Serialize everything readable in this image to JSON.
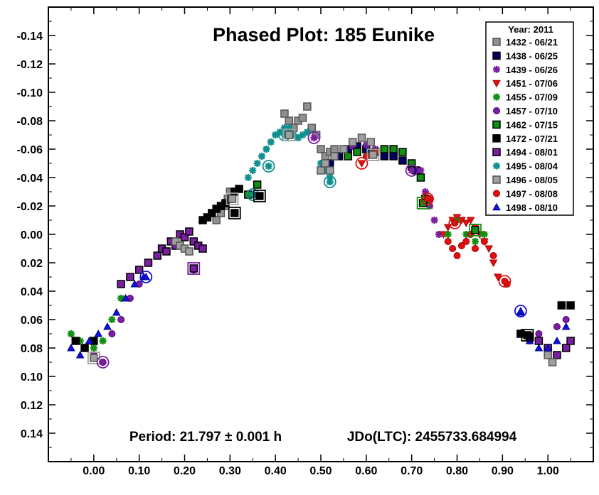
{
  "chart_data": {
    "type": "scatter",
    "title": "Phased Plot: 185 Eunike",
    "xlabel": "",
    "ylabel": "",
    "xlim": [
      -0.1,
      1.1
    ],
    "ylim": [
      0.16,
      -0.16
    ],
    "y_inverted": true,
    "x_ticks": [
      "0.00",
      "0.10",
      "0.20",
      "0.30",
      "0.40",
      "0.50",
      "0.60",
      "0.70",
      "0.80",
      "0.90",
      "1.00"
    ],
    "x_tick_values": [
      0.0,
      0.1,
      0.2,
      0.3,
      0.4,
      0.5,
      0.6,
      0.7,
      0.8,
      0.9,
      1.0
    ],
    "y_ticks": [
      "-0.14",
      "-0.12",
      "-0.10",
      "-0.08",
      "-0.06",
      "-0.04",
      "-0.02",
      "0.00",
      "0.02",
      "0.04",
      "0.06",
      "0.08",
      "0.10",
      "0.12",
      "0.14"
    ],
    "y_tick_values": [
      -0.14,
      -0.12,
      -0.1,
      -0.08,
      -0.06,
      -0.04,
      -0.02,
      0.0,
      0.02,
      0.04,
      0.06,
      0.08,
      0.1,
      0.12,
      0.14
    ],
    "grid": false,
    "legend_position": "top-right",
    "legend_title": "Year: 2011",
    "annotations": {
      "period": "Period: 21.797 ± 0.001 h",
      "epoch": "JDo(LTC): 2455733.684994"
    },
    "series": [
      {
        "name": "1432 - 06/21",
        "marker": "square",
        "fill": "#909090",
        "stroke": "#555555",
        "points": [
          [
            0.27,
            -0.01
          ],
          [
            0.28,
            -0.015
          ],
          [
            0.29,
            -0.02
          ],
          [
            0.295,
            -0.025
          ],
          [
            0.3,
            -0.03
          ],
          [
            0.42,
            -0.085
          ],
          [
            0.43,
            -0.08
          ],
          [
            0.44,
            -0.075
          ],
          [
            0.45,
            -0.08
          ],
          [
            0.46,
            -0.082
          ],
          [
            0.47,
            -0.09
          ],
          [
            0.48,
            -0.075
          ],
          [
            0.49,
            -0.07
          ],
          [
            0.5,
            -0.06
          ],
          [
            0.51,
            -0.055
          ],
          [
            0.52,
            -0.058
          ],
          [
            0.53,
            -0.06
          ]
        ]
      },
      {
        "name": "1438 - 06/25",
        "marker": "square",
        "fill": "#000066",
        "stroke": "#000000",
        "points": [
          [
            0.52,
            -0.05
          ],
          [
            0.54,
            -0.055
          ],
          [
            0.56,
            -0.06
          ],
          [
            0.58,
            -0.062
          ],
          [
            0.6,
            -0.06
          ],
          [
            0.62,
            -0.058
          ],
          [
            0.64,
            -0.055
          ],
          [
            0.66,
            -0.055
          ],
          [
            0.68,
            -0.052
          ],
          [
            0.7,
            -0.048
          ],
          [
            0.71,
            -0.045
          ]
        ]
      },
      {
        "name": "1439 - 06/26",
        "marker": "asterisk",
        "fill": "#7b1fa2",
        "stroke": "#7b1fa2",
        "points": [
          [
            0.55,
            -0.06
          ],
          [
            0.57,
            -0.062
          ],
          [
            0.6,
            -0.063
          ],
          [
            0.62,
            -0.06
          ],
          [
            0.72,
            -0.045
          ],
          [
            0.73,
            -0.03
          ],
          [
            0.74,
            -0.02
          ],
          [
            0.75,
            -0.01
          ],
          [
            0.76,
            0.0
          ]
        ]
      },
      {
        "name": "1451 - 07/06",
        "marker": "triangle-down",
        "fill": "#e01010",
        "stroke": "#aa0000",
        "points": [
          [
            0.77,
            0.0
          ],
          [
            0.78,
            -0.005
          ],
          [
            0.79,
            -0.01
          ],
          [
            0.8,
            -0.012
          ],
          [
            0.81,
            -0.01
          ],
          [
            0.82,
            -0.008
          ],
          [
            0.83,
            -0.01
          ],
          [
            0.84,
            -0.005
          ],
          [
            0.85,
            0.0
          ],
          [
            0.86,
            0.005
          ],
          [
            0.87,
            0.01
          ],
          [
            0.88,
            0.02
          ],
          [
            0.89,
            0.03
          ]
        ]
      },
      {
        "name": "1455 - 07/09",
        "marker": "asterisk",
        "fill": "#109010",
        "stroke": "#109010",
        "points": [
          [
            -0.05,
            0.07
          ],
          [
            -0.03,
            0.075
          ],
          [
            0.0,
            0.08
          ],
          [
            0.02,
            0.075
          ],
          [
            0.04,
            0.06
          ],
          [
            0.06,
            0.045
          ],
          [
            0.08,
            0.03
          ],
          [
            0.1,
            0.025
          ],
          [
            0.78,
            0.0
          ],
          [
            0.8,
            -0.01
          ],
          [
            0.82,
            0.0
          ],
          [
            0.84,
            0.005
          ],
          [
            0.86,
            0.0
          ],
          [
            0.98,
            0.075
          ],
          [
            1.0,
            0.08
          ]
        ]
      },
      {
        "name": "1457 - 07/10",
        "marker": "circle",
        "fill": "#7b1fa2",
        "stroke": "#4a0070",
        "points": [
          [
            0.0,
            0.085
          ],
          [
            0.02,
            0.09
          ],
          [
            0.04,
            0.07
          ],
          [
            0.06,
            0.06
          ],
          [
            0.08,
            0.045
          ],
          [
            0.1,
            0.035
          ],
          [
            0.22,
            0.025
          ],
          [
            0.96,
            0.075
          ],
          [
            0.98,
            0.07
          ],
          [
            1.02,
            0.065
          ],
          [
            1.04,
            0.06
          ]
        ]
      },
      {
        "name": "1462 - 07/15",
        "marker": "square",
        "fill": "#109010",
        "stroke": "#000000",
        "points": [
          [
            0.34,
            -0.028
          ],
          [
            0.36,
            -0.035
          ],
          [
            0.56,
            -0.055
          ],
          [
            0.58,
            -0.058
          ],
          [
            0.62,
            -0.058
          ],
          [
            0.64,
            -0.06
          ],
          [
            0.66,
            -0.06
          ],
          [
            0.68,
            -0.058
          ],
          [
            0.7,
            -0.05
          ],
          [
            0.72,
            -0.04
          ],
          [
            0.73,
            -0.025
          ]
        ]
      },
      {
        "name": "1472 - 07/21",
        "marker": "square",
        "fill": "#000000",
        "stroke": "#000000",
        "points": [
          [
            0.24,
            -0.01
          ],
          [
            0.25,
            -0.012
          ],
          [
            0.26,
            -0.015
          ],
          [
            0.27,
            -0.018
          ],
          [
            0.28,
            -0.02
          ],
          [
            0.29,
            -0.022
          ],
          [
            0.3,
            -0.025
          ],
          [
            0.31,
            -0.03
          ],
          [
            0.32,
            -0.032
          ],
          [
            -0.04,
            0.075
          ],
          [
            -0.02,
            0.08
          ],
          [
            0.0,
            0.075
          ],
          [
            0.94,
            0.07
          ],
          [
            0.96,
            0.072
          ],
          [
            1.03,
            0.05
          ],
          [
            1.05,
            0.05
          ]
        ]
      },
      {
        "name": "1494 - 08/01",
        "marker": "square",
        "fill": "#7b1fa2",
        "stroke": "#000000",
        "points": [
          [
            0.06,
            0.035
          ],
          [
            0.08,
            0.03
          ],
          [
            0.1,
            0.025
          ],
          [
            0.12,
            0.02
          ],
          [
            0.14,
            0.015
          ],
          [
            0.15,
            0.01
          ],
          [
            0.16,
            0.012
          ],
          [
            0.17,
            0.005
          ],
          [
            0.18,
            0.008
          ],
          [
            0.19,
            0.0
          ],
          [
            0.2,
            0.002
          ],
          [
            0.21,
            -0.002
          ],
          [
            0.22,
            0.005
          ],
          [
            0.23,
            0.008
          ],
          [
            0.24,
            0.01
          ],
          [
            0.98,
            0.075
          ],
          [
            1.0,
            0.08
          ],
          [
            1.02,
            0.085
          ],
          [
            1.04,
            0.08
          ],
          [
            1.05,
            0.075
          ]
        ]
      },
      {
        "name": "1495 - 08/04",
        "marker": "asterisk",
        "fill": "#108f8f",
        "stroke": "#108f8f",
        "points": [
          [
            0.34,
            -0.04
          ],
          [
            0.35,
            -0.045
          ],
          [
            0.36,
            -0.05
          ],
          [
            0.37,
            -0.055
          ],
          [
            0.38,
            -0.06
          ],
          [
            0.39,
            -0.065
          ],
          [
            0.4,
            -0.07
          ],
          [
            0.41,
            -0.072
          ],
          [
            0.42,
            -0.075
          ],
          [
            0.43,
            -0.075
          ],
          [
            0.44,
            -0.07
          ],
          [
            0.45,
            -0.068
          ],
          [
            0.46,
            -0.07
          ],
          [
            0.47,
            -0.072
          ],
          [
            0.5,
            -0.05
          ],
          [
            0.51,
            -0.045
          ],
          [
            0.52,
            -0.04
          ]
        ]
      },
      {
        "name": "1496 - 08/05",
        "marker": "square",
        "fill": "#a0a0a0",
        "stroke": "#555555",
        "points": [
          [
            0.18,
            0.005
          ],
          [
            0.19,
            0.008
          ],
          [
            0.2,
            0.01
          ],
          [
            0.21,
            0.012
          ],
          [
            0.5,
            -0.045
          ],
          [
            0.51,
            -0.05
          ],
          [
            0.52,
            -0.045
          ],
          [
            0.53,
            -0.055
          ],
          [
            0.55,
            -0.06
          ],
          [
            0.57,
            -0.065
          ],
          [
            0.59,
            -0.068
          ],
          [
            0.61,
            -0.065
          ],
          [
            1.0,
            0.085
          ],
          [
            1.01,
            0.09
          ]
        ]
      },
      {
        "name": "1497 - 08/08",
        "marker": "circle",
        "fill": "#e01010",
        "stroke": "#aa0000",
        "points": [
          [
            0.6,
            -0.055
          ],
          [
            0.62,
            -0.058
          ],
          [
            0.74,
            -0.025
          ],
          [
            0.78,
            0.005
          ],
          [
            0.79,
            0.01
          ],
          [
            0.8,
            0.015
          ],
          [
            0.81,
            0.008
          ],
          [
            0.82,
            0.005
          ],
          [
            0.83,
            0.0
          ],
          [
            0.84,
            0.01
          ],
          [
            0.86,
            0.005
          ],
          [
            0.88,
            0.015
          ],
          [
            0.91,
            0.035
          ]
        ]
      },
      {
        "name": "1498 - 08/10",
        "marker": "triangle-up",
        "fill": "#1010e0",
        "stroke": "#000080",
        "points": [
          [
            -0.05,
            0.08
          ],
          [
            -0.03,
            0.085
          ],
          [
            -0.01,
            0.075
          ],
          [
            0.01,
            0.07
          ],
          [
            0.03,
            0.065
          ],
          [
            0.05,
            0.055
          ],
          [
            0.07,
            0.045
          ],
          [
            0.09,
            0.035
          ],
          [
            0.11,
            0.03
          ],
          [
            0.94,
            0.055
          ],
          [
            0.96,
            0.075
          ],
          [
            0.98,
            0.08
          ],
          [
            1.0,
            0.08
          ],
          [
            1.02,
            0.075
          ],
          [
            1.04,
            0.065
          ]
        ]
      }
    ],
    "highlighted_points": [
      {
        "series": 10,
        "x": 0.305,
        "y": -0.025
      },
      {
        "series": 7,
        "x": 0.31,
        "y": -0.015
      },
      {
        "series": 9,
        "x": 0.35,
        "y": -0.028
      },
      {
        "series": 7,
        "x": 0.365,
        "y": -0.027
      },
      {
        "series": 9,
        "x": 0.385,
        "y": -0.048
      },
      {
        "series": 9,
        "x": 0.42,
        "y": -0.07
      },
      {
        "series": 10,
        "x": 0.43,
        "y": -0.07
      },
      {
        "series": 2,
        "x": 0.485,
        "y": -0.068
      },
      {
        "series": 9,
        "x": 0.52,
        "y": -0.037
      },
      {
        "series": 3,
        "x": 0.59,
        "y": -0.05
      },
      {
        "series": 10,
        "x": 0.615,
        "y": -0.056
      },
      {
        "series": 2,
        "x": 0.7,
        "y": -0.045
      },
      {
        "series": 6,
        "x": 0.725,
        "y": -0.022
      },
      {
        "series": 11,
        "x": 0.735,
        "y": -0.025
      },
      {
        "series": 11,
        "x": 0.795,
        "y": -0.008
      },
      {
        "series": 6,
        "x": 0.84,
        "y": -0.003
      },
      {
        "series": 11,
        "x": 0.905,
        "y": 0.033
      },
      {
        "series": 12,
        "x": 0.94,
        "y": 0.054
      },
      {
        "series": 7,
        "x": 0.955,
        "y": 0.071
      },
      {
        "series": 8,
        "x": 0.22,
        "y": 0.024
      },
      {
        "series": 12,
        "x": 0.115,
        "y": 0.03
      },
      {
        "series": 10,
        "x": 0.0,
        "y": 0.087
      },
      {
        "series": 5,
        "x": 0.02,
        "y": 0.09
      }
    ]
  }
}
